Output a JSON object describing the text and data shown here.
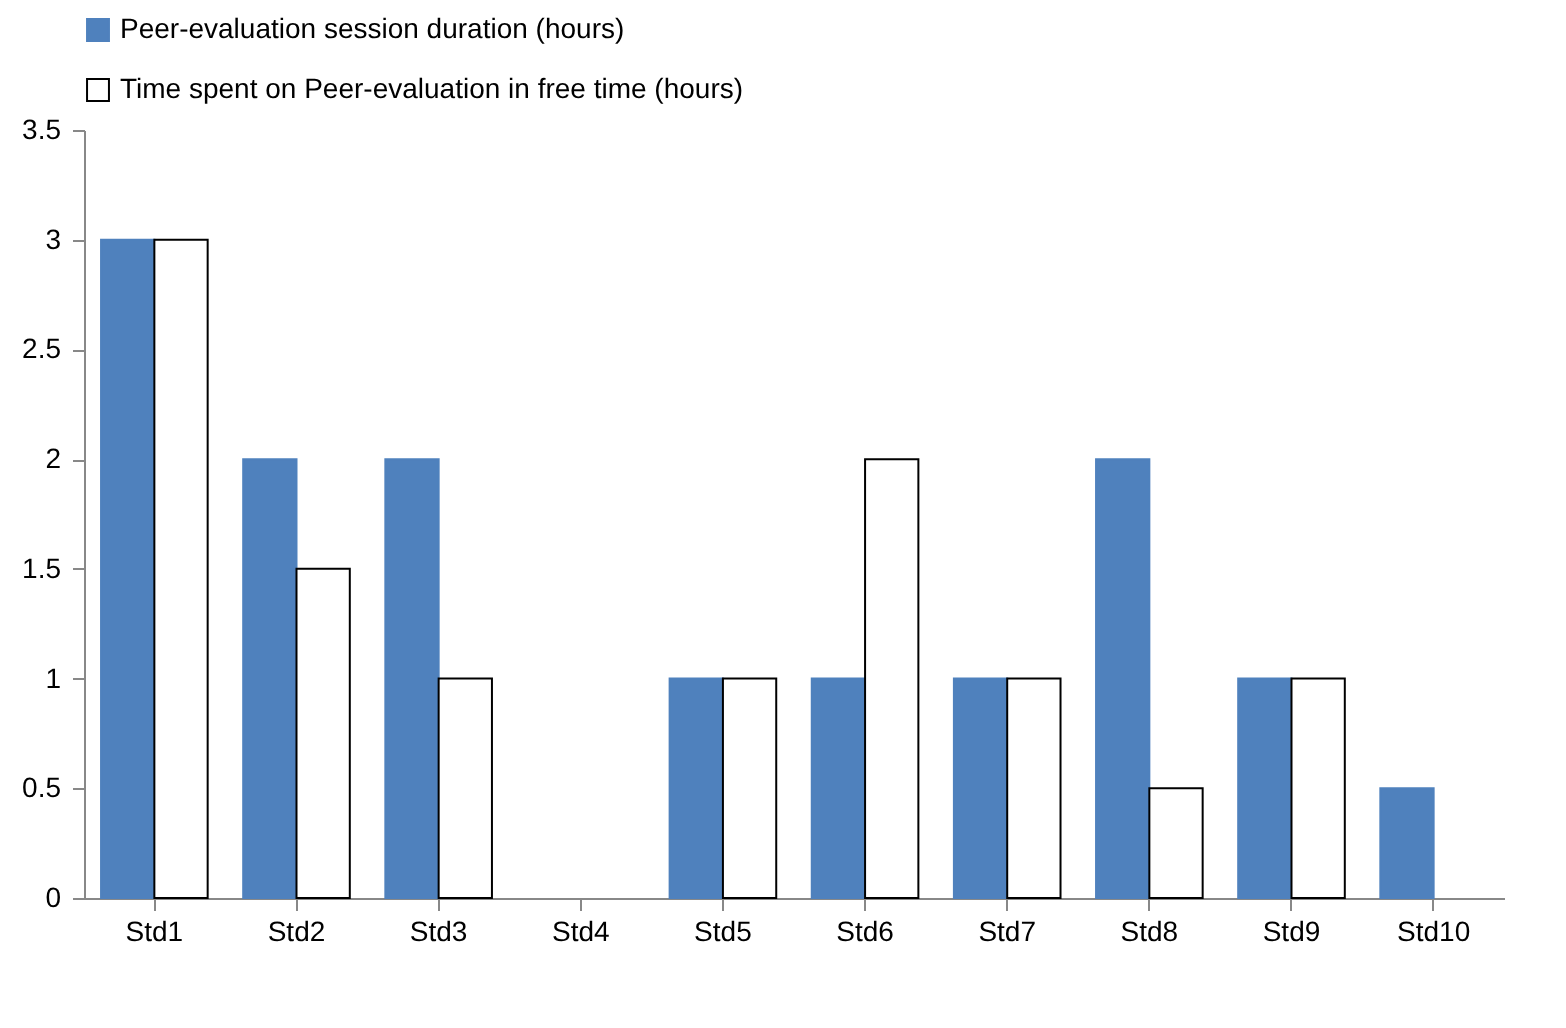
{
  "chart_data": {
    "type": "bar",
    "categories": [
      "Std1",
      "Std2",
      "Std3",
      "Std4",
      "Std5",
      "Std6",
      "Std7",
      "Std8",
      "Std9",
      "Std10"
    ],
    "series": [
      {
        "name": "Peer-evaluation session duration (hours)",
        "color": "#4f81bd",
        "values": [
          3,
          2,
          2,
          0,
          1,
          1,
          1,
          2,
          1,
          0.5
        ]
      },
      {
        "name": "Time spent on Peer-evaluation in free time (hours)",
        "color": "#ffffff",
        "values": [
          3,
          1.5,
          1,
          0,
          1,
          2,
          1,
          0.5,
          1,
          0
        ]
      }
    ],
    "ylim": [
      0,
      3.5
    ],
    "yticks": [
      0,
      0.5,
      1,
      1.5,
      2,
      2.5,
      3,
      3.5
    ],
    "grid": false,
    "legend": "top"
  }
}
